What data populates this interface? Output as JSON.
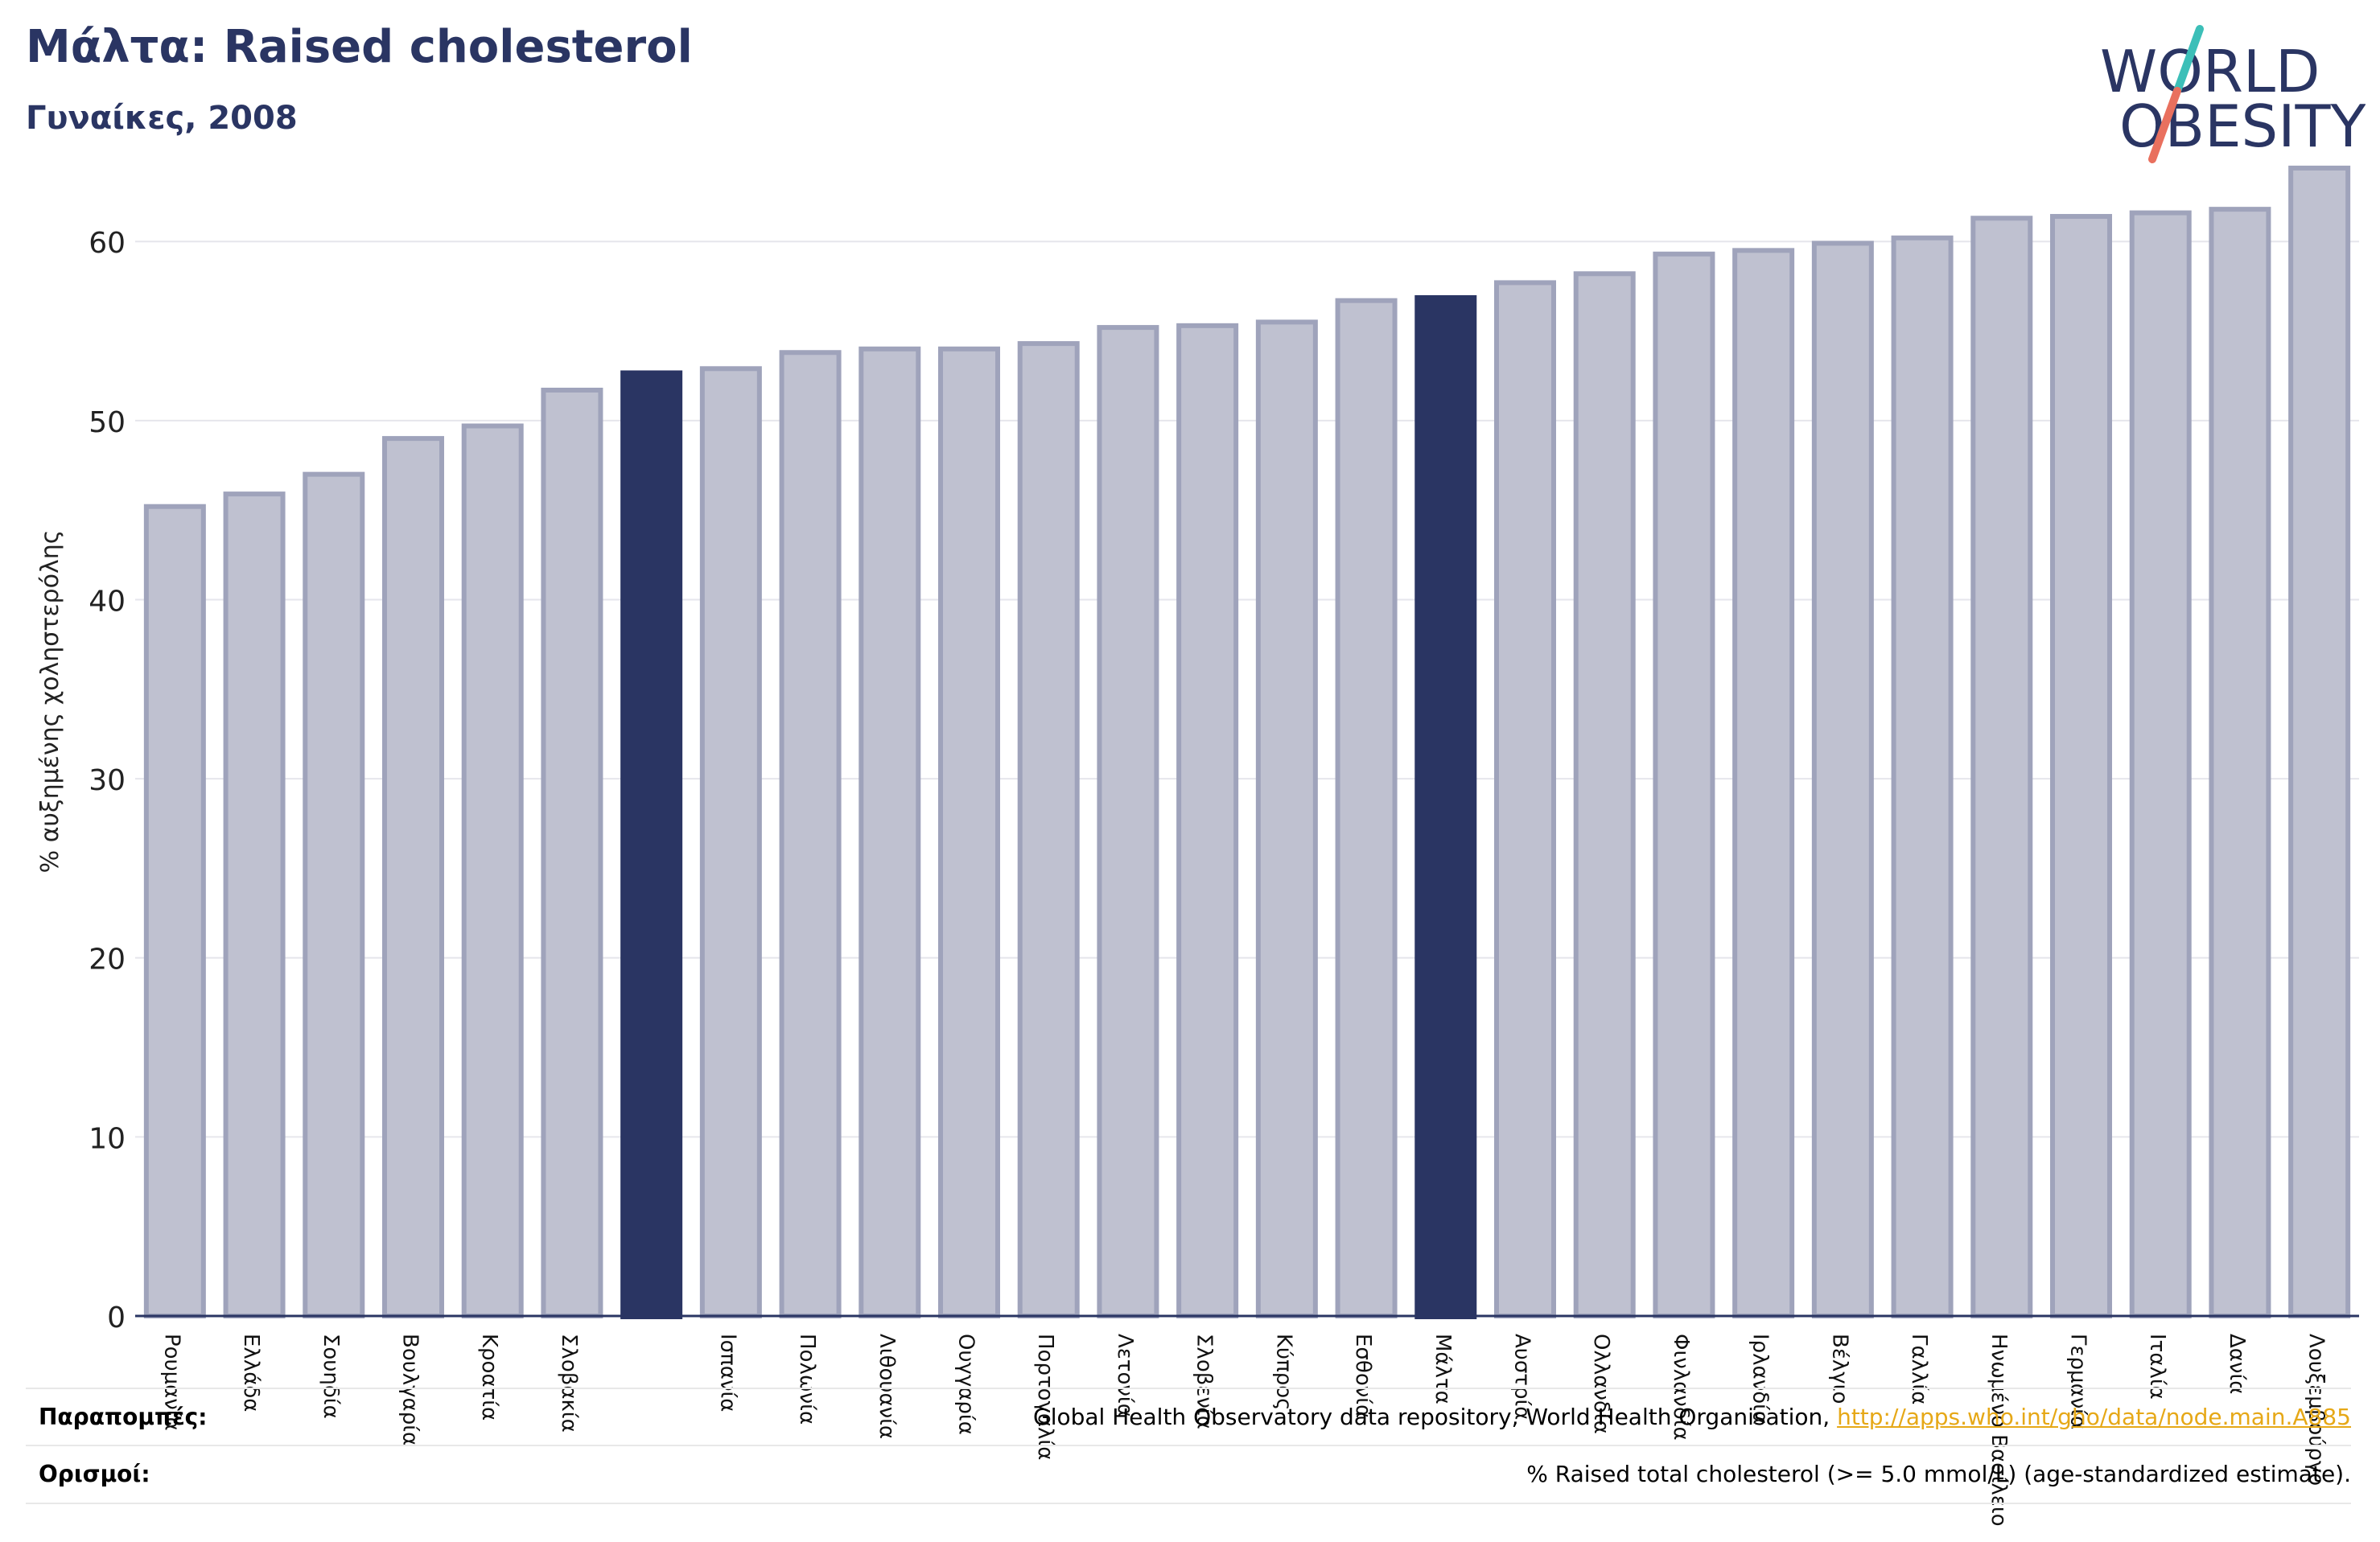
{
  "header": {
    "title": "Μάλτα: Raised cholesterol",
    "subtitle": "Γυναίκες, 2008"
  },
  "logo": {
    "line1": "WORLD",
    "line2": "OBESITY",
    "slash_colors": [
      "#3cbfb8",
      "#e9705e"
    ],
    "text_color": "#2a3563"
  },
  "colors": {
    "bar": "#bfc1d0",
    "bar_edge": "#9fa3bb",
    "highlight": "#2a3563",
    "axis": "#2a3563",
    "grid": "#e6e6ec"
  },
  "chart_data": {
    "type": "bar",
    "title": "Μάλτα: Raised cholesterol",
    "subtitle": "Γυναίκες, 2008",
    "xlabel": "",
    "ylabel": "% αυξημένης χοληστερόλης",
    "ylim": [
      0,
      65
    ],
    "yticks": [
      0,
      10,
      20,
      30,
      40,
      50,
      60
    ],
    "grid": true,
    "categories": [
      "Ρουμανία",
      "Ελλάδα",
      "Σουηδία",
      "Βουλγαρία",
      "Κροατία",
      "Σλοβακία",
      "",
      "Ισπανία",
      "Πολωνία",
      "Λιθουανία",
      "Ουγγαρία",
      "Πορτογαλία",
      "Λετονία",
      "Σλοβενία",
      "Κύπρος",
      "Εσθονία",
      "Μάλτα",
      "Αυστρία",
      "Ολλανδία",
      "Φινλανδία",
      "Ιρλανδία",
      "Βέλγιο",
      "Γαλλία",
      "Ηνωμένο Βασίλειο",
      "Γερμανία",
      "Ιταλία",
      "Δανία",
      "Λουξεμβούργο"
    ],
    "values": [
      45.2,
      45.9,
      47.0,
      49.0,
      49.7,
      51.7,
      52.8,
      52.9,
      53.8,
      54.0,
      54.0,
      54.3,
      55.2,
      55.3,
      55.5,
      56.7,
      57.0,
      57.7,
      58.2,
      59.3,
      59.5,
      59.9,
      60.2,
      61.3,
      61.4,
      61.6,
      61.8,
      64.1
    ],
    "highlighted_indices": [
      6,
      16
    ]
  },
  "footer": {
    "references_label": "Παραπομπές:",
    "references_text": "Global Health Observatory data repository, World Health Organisation,",
    "references_link": "http://apps.who.int/gho/data/node.main.A885",
    "definitions_label": "Ορισμοί:",
    "definitions_text": "% Raised total cholesterol (>= 5.0 mmol/L) (age-standardized estimate)."
  }
}
